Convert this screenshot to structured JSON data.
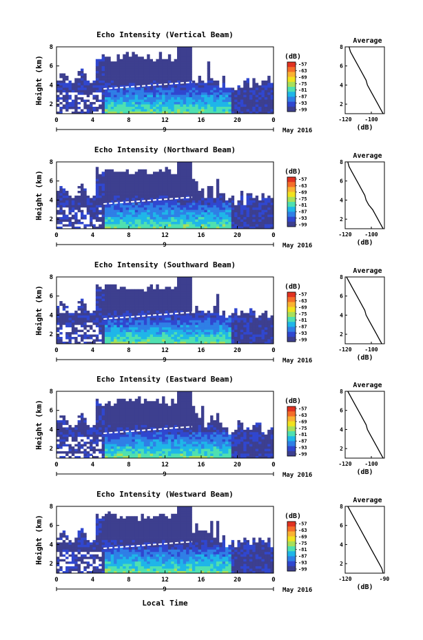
{
  "figure": {
    "xlabel": "Local Time",
    "date_label": "May 2016"
  },
  "colorbar": {
    "unit": "(dB)",
    "ticks": [
      "-57",
      "-63",
      "-69",
      "-75",
      "-81",
      "-87",
      "-93",
      "-99"
    ],
    "colors": [
      "#e03221",
      "#f46d2a",
      "#f9b233",
      "#f1e21f",
      "#a8e05a",
      "#4fe0b0",
      "#1fb6e8",
      "#2f7fe6",
      "#3047cf",
      "#3d3f8f"
    ]
  },
  "chart_data": [
    {
      "type": "heatmap",
      "title": "Echo Intensity (Vertical Beam)",
      "ylabel": "Height (km)",
      "xlim": [
        0,
        24
      ],
      "ylim": [
        1,
        8
      ],
      "xticks": [
        "0",
        "4",
        "8",
        "12",
        "16",
        "20",
        "0"
      ],
      "yticks": [
        "2",
        "4",
        "6",
        "8"
      ],
      "day_label": "9",
      "unit": "dB",
      "average": {
        "title": "Average",
        "xlabel": "(dB)",
        "xlim": [
          -120,
          -90
        ],
        "xticks": [
          "-120",
          "-100"
        ],
        "ylim": [
          1,
          8
        ],
        "yticks": [
          "2",
          "4",
          "6",
          "8"
        ],
        "profile": [
          [
            -117,
            8
          ],
          [
            -116,
            7.5
          ],
          [
            -114,
            7
          ],
          [
            -112,
            6.5
          ],
          [
            -110,
            6
          ],
          [
            -108,
            5.5
          ],
          [
            -106,
            5
          ],
          [
            -104,
            4.5
          ],
          [
            -103,
            4
          ],
          [
            -101,
            3.5
          ],
          [
            -99,
            3
          ],
          [
            -97,
            2.5
          ],
          [
            -95,
            2
          ],
          [
            -93,
            1.5
          ],
          [
            -91,
            1
          ]
        ]
      }
    },
    {
      "type": "heatmap",
      "title": "Echo Intensity (Northward Beam)",
      "ylabel": "Height (km)",
      "xlim": [
        0,
        24
      ],
      "ylim": [
        1,
        8
      ],
      "xticks": [
        "0",
        "4",
        "8",
        "12",
        "16",
        "20",
        "0"
      ],
      "yticks": [
        "2",
        "4",
        "6",
        "8"
      ],
      "day_label": "9",
      "unit": "dB",
      "average": {
        "title": "Average",
        "xlabel": "(dB)",
        "xlim": [
          -120,
          -90
        ],
        "xticks": [
          "-120",
          "-100"
        ],
        "ylim": [
          1,
          8
        ],
        "yticks": [
          "2",
          "4",
          "6",
          "8"
        ],
        "profile": [
          [
            -118,
            8
          ],
          [
            -117,
            7.5
          ],
          [
            -115,
            7
          ],
          [
            -113,
            6.5
          ],
          [
            -111,
            6
          ],
          [
            -109,
            5.5
          ],
          [
            -107,
            5
          ],
          [
            -105,
            4.5
          ],
          [
            -104,
            4
          ],
          [
            -102,
            3.5
          ],
          [
            -99,
            3
          ],
          [
            -97,
            2.5
          ],
          [
            -95,
            2
          ],
          [
            -93,
            1.5
          ],
          [
            -91,
            1
          ]
        ]
      }
    },
    {
      "type": "heatmap",
      "title": "Echo Intensity (Southward Beam)",
      "ylabel": "Height (km)",
      "xlim": [
        0,
        24
      ],
      "ylim": [
        1,
        8
      ],
      "xticks": [
        "0",
        "4",
        "8",
        "12",
        "16",
        "20",
        "0"
      ],
      "yticks": [
        "2",
        "4",
        "6",
        "8"
      ],
      "day_label": "9",
      "unit": "dB",
      "average": {
        "title": "Average",
        "xlabel": "(dB)",
        "xlim": [
          -120,
          -90
        ],
        "xticks": [
          "-120",
          "-100"
        ],
        "ylim": [
          1,
          8
        ],
        "yticks": [
          "2",
          "4",
          "6",
          "8"
        ],
        "profile": [
          [
            -119,
            8
          ],
          [
            -117,
            7.5
          ],
          [
            -115,
            7
          ],
          [
            -113,
            6.5
          ],
          [
            -111,
            6
          ],
          [
            -109,
            5.5
          ],
          [
            -107,
            5
          ],
          [
            -105,
            4.5
          ],
          [
            -104,
            4
          ],
          [
            -102,
            3.5
          ],
          [
            -100,
            3
          ],
          [
            -98,
            2.5
          ],
          [
            -96,
            2
          ],
          [
            -94,
            1.5
          ],
          [
            -92,
            1
          ]
        ]
      }
    },
    {
      "type": "heatmap",
      "title": "Echo Intensity (Eastward Beam)",
      "ylabel": "Height (km)",
      "xlim": [
        0,
        24
      ],
      "ylim": [
        1,
        8
      ],
      "xticks": [
        "0",
        "4",
        "8",
        "12",
        "16",
        "20",
        "0"
      ],
      "yticks": [
        "2",
        "4",
        "6",
        "8"
      ],
      "day_label": "9",
      "unit": "dB",
      "average": {
        "title": "Average",
        "xlabel": "(dB)",
        "xlim": [
          -120,
          -90
        ],
        "xticks": [
          "-120",
          "-100"
        ],
        "ylim": [
          1,
          8
        ],
        "yticks": [
          "2",
          "4",
          "6",
          "8"
        ],
        "profile": [
          [
            -118,
            8
          ],
          [
            -116,
            7.5
          ],
          [
            -114,
            7
          ],
          [
            -112,
            6.5
          ],
          [
            -110,
            6
          ],
          [
            -108,
            5.5
          ],
          [
            -106,
            5
          ],
          [
            -104,
            4.5
          ],
          [
            -103,
            4
          ],
          [
            -101,
            3.5
          ],
          [
            -99,
            3
          ],
          [
            -97,
            2.5
          ],
          [
            -95,
            2
          ],
          [
            -93,
            1.5
          ],
          [
            -91,
            1
          ]
        ]
      }
    },
    {
      "type": "heatmap",
      "title": "Echo Intensity (Westward Beam)",
      "ylabel": "Height (km)",
      "xlim": [
        0,
        24
      ],
      "ylim": [
        1,
        8
      ],
      "xticks": [
        "0",
        "4",
        "8",
        "12",
        "16",
        "20",
        "0"
      ],
      "yticks": [
        "2",
        "4",
        "6",
        "8"
      ],
      "day_label": "9",
      "unit": "dB",
      "average": {
        "title": "Average",
        "xlabel": "(dB)",
        "xlim": [
          -120,
          -90
        ],
        "xticks": [
          "-120",
          "-90"
        ],
        "ylim": [
          1,
          8
        ],
        "yticks": [
          "2",
          "4",
          "6",
          "8"
        ],
        "profile": [
          [
            -118,
            8
          ],
          [
            -116,
            7.5
          ],
          [
            -114,
            7
          ],
          [
            -112,
            6.5
          ],
          [
            -110,
            6
          ],
          [
            -108,
            5.5
          ],
          [
            -106,
            5
          ],
          [
            -104,
            4.5
          ],
          [
            -102,
            4
          ],
          [
            -100,
            3.5
          ],
          [
            -98,
            3
          ],
          [
            -96,
            2.5
          ],
          [
            -94,
            2
          ],
          [
            -92,
            1.5
          ],
          [
            -91,
            1
          ]
        ]
      }
    }
  ]
}
